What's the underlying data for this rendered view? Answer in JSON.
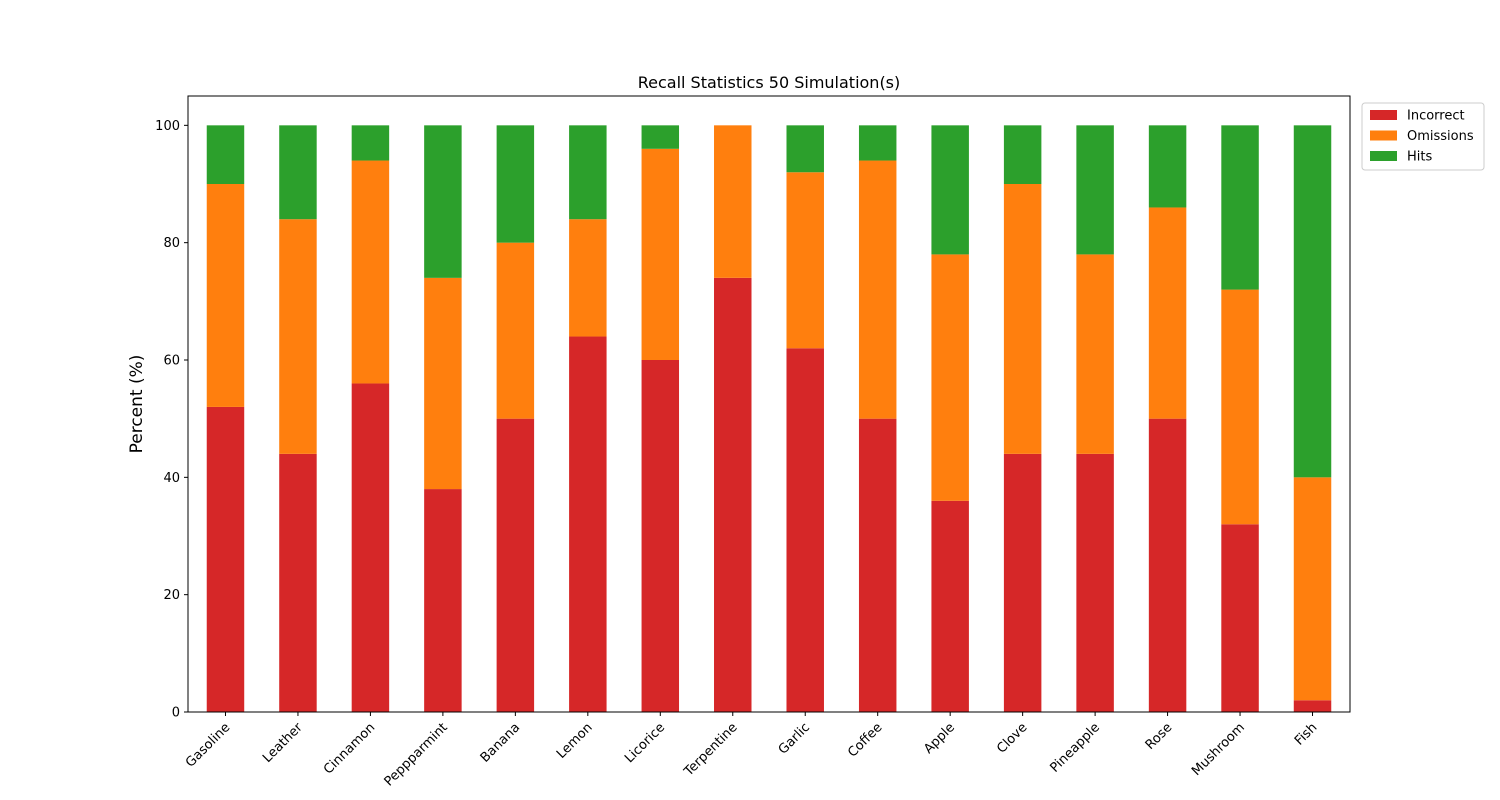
{
  "chart_data": {
    "type": "bar",
    "stacked": true,
    "title": "Recall Statistics 50 Simulation(s)",
    "xlabel": "",
    "ylabel": "Percent (%)",
    "ylim": [
      0,
      105
    ],
    "yticks": [
      0,
      20,
      40,
      60,
      80,
      100
    ],
    "grid": false,
    "legend_position": "outside-top-right",
    "categories": [
      "Gasoline",
      "Leather",
      "Cinnamon",
      "Peppparmint",
      "Banana",
      "Lemon",
      "Licorice",
      "Terpentine",
      "Garlic",
      "Coffee",
      "Apple",
      "Clove",
      "Pineapple",
      "Rose",
      "Mushroom",
      "Fish"
    ],
    "series": [
      {
        "name": "Incorrect",
        "color": "#d62728",
        "values": [
          52,
          44,
          56,
          38,
          50,
          64,
          60,
          74,
          62,
          50,
          36,
          44,
          44,
          50,
          32,
          2
        ]
      },
      {
        "name": "Omissions",
        "color": "#ff7f0e",
        "values": [
          38,
          40,
          38,
          36,
          30,
          20,
          36,
          26,
          30,
          44,
          42,
          46,
          34,
          36,
          40,
          38
        ]
      },
      {
        "name": "Hits",
        "color": "#2ca02c",
        "values": [
          10,
          16,
          6,
          26,
          20,
          16,
          4,
          0,
          8,
          6,
          22,
          10,
          22,
          14,
          28,
          60
        ]
      }
    ]
  }
}
